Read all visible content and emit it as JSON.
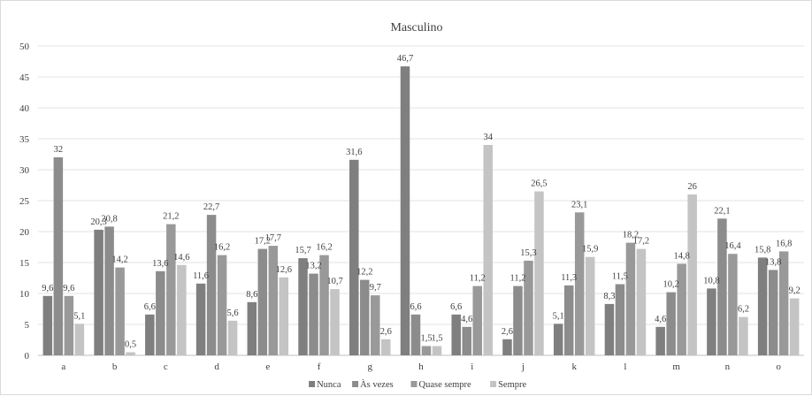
{
  "chart_data": {
    "type": "bar",
    "title": "Masculino",
    "xlabel": "",
    "ylabel": "",
    "ylim": [
      0,
      50
    ],
    "yticks": [
      0,
      5,
      10,
      15,
      20,
      25,
      30,
      35,
      40,
      45,
      50
    ],
    "grid": true,
    "legend_position": "bottom",
    "categories": [
      "a",
      "b",
      "c",
      "d",
      "e",
      "f",
      "g",
      "h",
      "i",
      "j",
      "k",
      "l",
      "m",
      "n",
      "o"
    ],
    "series": [
      {
        "name": "Nunca",
        "color": "#7f7f7f",
        "values": [
          9.6,
          20.3,
          6.6,
          11.6,
          8.6,
          15.7,
          31.6,
          46.7,
          6.6,
          2.6,
          5.1,
          8.3,
          4.6,
          10.8,
          15.8
        ],
        "labels": [
          "9,6",
          "20,3",
          "6,6",
          "11,6",
          "8,6",
          "15,7",
          "31,6",
          "46,7",
          "6,6",
          "2,6",
          "5,1",
          "8,3",
          "4,6",
          "10,8",
          "15,8"
        ]
      },
      {
        "name": "Às vezes",
        "color": "#8c8c8c",
        "values": [
          32,
          20.8,
          13.6,
          22.7,
          17.2,
          13.2,
          12.2,
          6.6,
          4.6,
          11.2,
          11.3,
          11.5,
          10.2,
          22.1,
          13.8
        ],
        "labels": [
          "32",
          "20,8",
          "13,6",
          "22,7",
          "17,2",
          "13,2",
          "12,2",
          "6,6",
          "4,6",
          "11,2",
          "11,3",
          "11,5",
          "10,2",
          "22,1",
          "13,8"
        ]
      },
      {
        "name": "Quase sempre",
        "color": "#999999",
        "values": [
          9.6,
          14.2,
          21.2,
          16.2,
          17.7,
          16.2,
          9.7,
          1.5,
          11.2,
          15.3,
          23.1,
          18.2,
          14.8,
          16.4,
          16.8
        ],
        "labels": [
          "9,6",
          "14,2",
          "21,2",
          "16,2",
          "17,7",
          "16,2",
          "9,7",
          "1,5",
          "11,2",
          "15,3",
          "23,1",
          "18,2",
          "14,8",
          "16,4",
          "16,8"
        ]
      },
      {
        "name": "Sempre",
        "color": "#c4c4c4",
        "values": [
          5.1,
          0.5,
          14.6,
          5.6,
          12.6,
          10.7,
          2.6,
          1.5,
          34,
          26.5,
          15.9,
          17.2,
          26,
          6.2,
          9.2
        ],
        "labels": [
          "5,1",
          "0,5",
          "14,6",
          "5,6",
          "12,6",
          "10,7",
          "2,6",
          "1,5",
          "34",
          "26,5",
          "15,9",
          "17,2",
          "26",
          "6,2",
          "9,2"
        ]
      }
    ]
  }
}
